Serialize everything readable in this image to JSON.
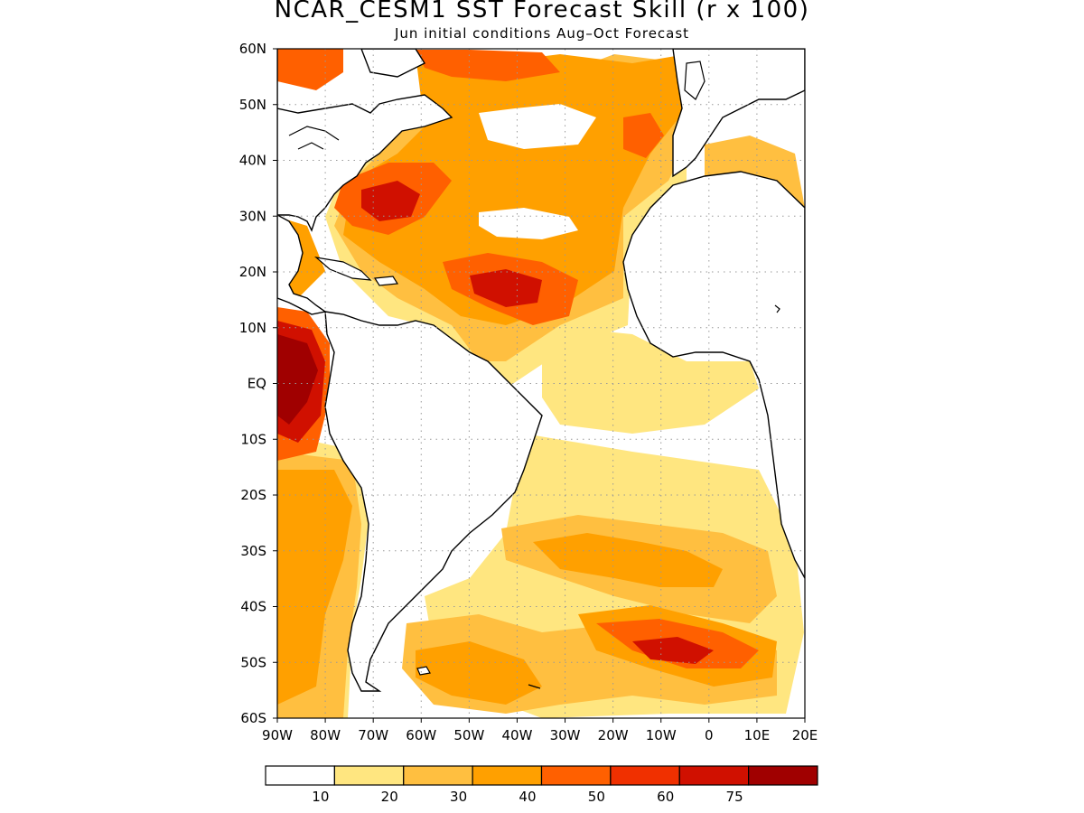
{
  "title": "NCAR_CESM1 SST Forecast Skill (r x 100)",
  "subtitle": "Jun initial conditions  Aug–Oct Forecast",
  "map": {
    "lon_range": [
      -90,
      20
    ],
    "lat_range": [
      -60,
      60
    ],
    "lat_labels": [
      "60N",
      "50N",
      "40N",
      "30N",
      "20N",
      "10N",
      "EQ",
      "10S",
      "20S",
      "30S",
      "40S",
      "50S",
      "60S"
    ],
    "lon_labels": [
      "90W",
      "80W",
      "70W",
      "60W",
      "50W",
      "40W",
      "30W",
      "20W",
      "10W",
      "0",
      "10E",
      "20E"
    ],
    "grid": "dotted"
  },
  "colorbar": {
    "colors": [
      "#ffffff",
      "#ffe680",
      "#ffbf40",
      "#ffa000",
      "#ff6000",
      "#f03000",
      "#d01000",
      "#a00000"
    ],
    "labels": [
      "10",
      "20",
      "30",
      "40",
      "50",
      "60",
      "75"
    ]
  }
}
